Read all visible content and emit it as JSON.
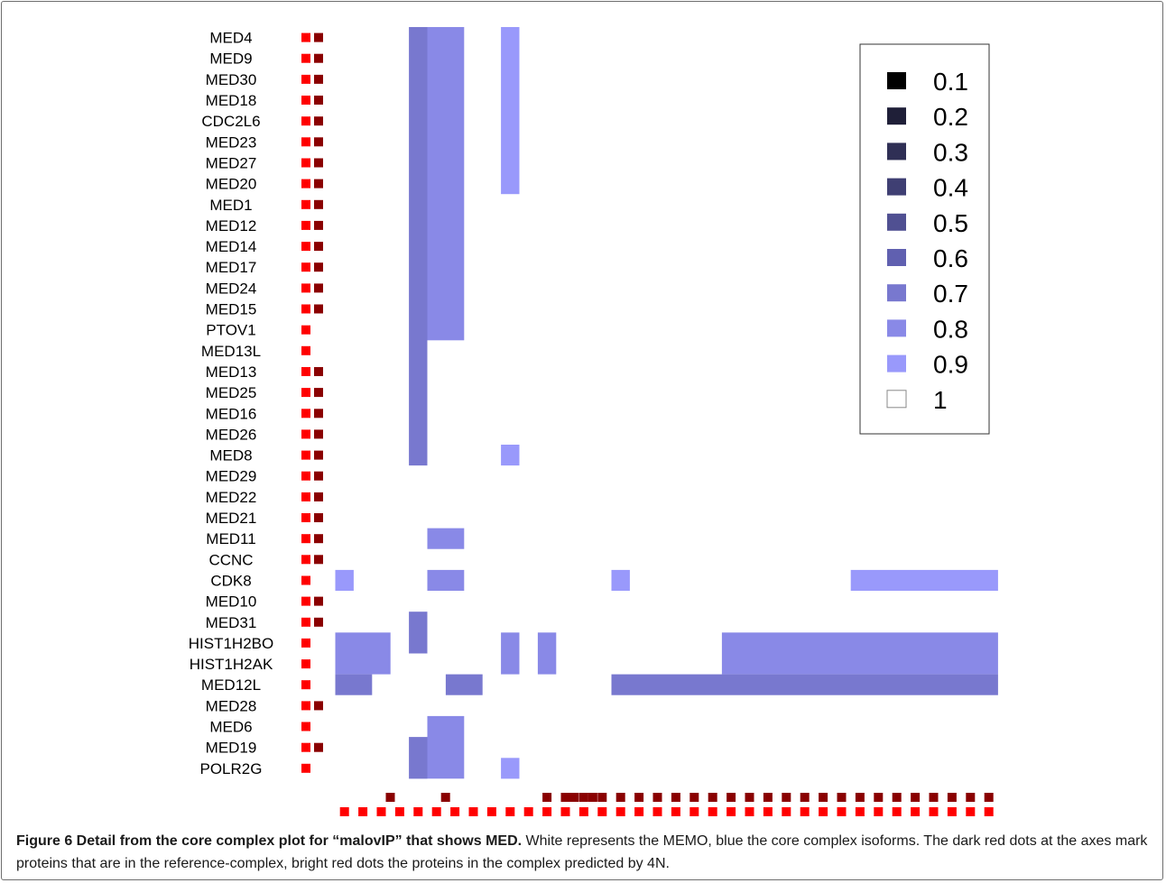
{
  "chart_data": {
    "type": "heatmap",
    "rows": [
      "MED4",
      "MED9",
      "MED30",
      "MED18",
      "CDC2L6",
      "MED23",
      "MED27",
      "MED20",
      "MED1",
      "MED12",
      "MED14",
      "MED17",
      "MED24",
      "MED15",
      "PTOV1",
      "MED13L",
      "MED13",
      "MED25",
      "MED16",
      "MED26",
      "MED8",
      "MED29",
      "MED22",
      "MED21",
      "MED11",
      "CCNC",
      "CDK8",
      "MED10",
      "MED31",
      "HIST1H2BO",
      "HIST1H2AK",
      "MED12L",
      "MED28",
      "MED6",
      "MED19",
      "POLR2G"
    ],
    "row_reference_dot": [
      true,
      true,
      true,
      true,
      true,
      true,
      true,
      true,
      true,
      true,
      true,
      true,
      true,
      true,
      false,
      false,
      true,
      true,
      true,
      true,
      true,
      true,
      true,
      true,
      true,
      true,
      false,
      true,
      true,
      false,
      false,
      false,
      true,
      false,
      true,
      false
    ],
    "row_predicted_dot": [
      true,
      true,
      true,
      true,
      true,
      true,
      true,
      true,
      true,
      true,
      true,
      true,
      true,
      true,
      true,
      true,
      true,
      true,
      true,
      true,
      true,
      true,
      true,
      true,
      true,
      true,
      true,
      true,
      true,
      true,
      true,
      true,
      true,
      true,
      true,
      true
    ],
    "column_count": 36,
    "col_reference_dot": [
      false,
      false,
      true,
      false,
      false,
      true,
      false,
      false,
      false,
      false,
      false,
      false,
      true,
      true,
      false,
      false,
      false,
      false,
      false,
      false,
      false,
      false,
      false,
      false,
      false,
      false,
      false,
      false,
      false,
      false,
      false,
      false,
      false,
      false,
      false,
      false
    ],
    "col_reference_dot_right": [
      true,
      true,
      true,
      true,
      true,
      true,
      true,
      true,
      true,
      false,
      false,
      true,
      true,
      true,
      true,
      true,
      true,
      true,
      true,
      true,
      true,
      true,
      true,
      true,
      true,
      true,
      true,
      true,
      true,
      true,
      true,
      true,
      true,
      true,
      true,
      true
    ],
    "col_predicted_dot": [
      true,
      true,
      true,
      true,
      true,
      true,
      true,
      true,
      true,
      true,
      true,
      true,
      true,
      true,
      true,
      true,
      true,
      true,
      true,
      true,
      true,
      true,
      true,
      true,
      true,
      true,
      true,
      true,
      true,
      true,
      true,
      true,
      true,
      true,
      true,
      true
    ],
    "cells": [
      {
        "r0": 0,
        "r1": 21,
        "c0": 4,
        "c1": 5,
        "value": 0.7
      },
      {
        "r0": 0,
        "r1": 15,
        "c0": 5,
        "c1": 7,
        "value": 0.8
      },
      {
        "r0": 0,
        "r1": 8,
        "c0": 9,
        "c1": 10,
        "value": 0.9
      },
      {
        "r0": 20,
        "r1": 21,
        "c0": 9,
        "c1": 10,
        "value": 0.9
      },
      {
        "r0": 24,
        "r1": 25,
        "c0": 5,
        "c1": 7,
        "value": 0.8
      },
      {
        "r0": 26,
        "r1": 27,
        "c0": 0,
        "c1": 1,
        "value": 0.9
      },
      {
        "r0": 26,
        "r1": 27,
        "c0": 5,
        "c1": 7,
        "value": 0.8
      },
      {
        "r0": 26,
        "r1": 27,
        "c0": 15,
        "c1": 16,
        "value": 0.9
      },
      {
        "r0": 26,
        "r1": 27,
        "c0": 28,
        "c1": 36,
        "value": 0.9
      },
      {
        "r0": 28,
        "r1": 30,
        "c0": 4,
        "c1": 5,
        "value": 0.7
      },
      {
        "r0": 29,
        "r1": 31,
        "c0": 0,
        "c1": 3,
        "value": 0.8
      },
      {
        "r0": 29,
        "r1": 31,
        "c0": 9,
        "c1": 10,
        "value": 0.8
      },
      {
        "r0": 29,
        "r1": 31,
        "c0": 11,
        "c1": 12,
        "value": 0.8
      },
      {
        "r0": 29,
        "r1": 31,
        "c0": 21,
        "c1": 36,
        "value": 0.8
      },
      {
        "r0": 31,
        "r1": 32,
        "c0": 0,
        "c1": 2,
        "value": 0.7
      },
      {
        "r0": 31,
        "r1": 32,
        "c0": 6,
        "c1": 8,
        "value": 0.7
      },
      {
        "r0": 31,
        "r1": 32,
        "c0": 15,
        "c1": 36,
        "value": 0.7
      },
      {
        "r0": 33,
        "r1": 36,
        "c0": 5,
        "c1": 7,
        "value": 0.8
      },
      {
        "r0": 34,
        "r1": 36,
        "c0": 4,
        "c1": 5,
        "value": 0.7
      },
      {
        "r0": 35,
        "r1": 36,
        "c0": 9,
        "c1": 10,
        "value": 0.9
      }
    ],
    "legend": {
      "placement": "top-right",
      "entries": [
        {
          "label": "0.1",
          "value": 0.1,
          "color": "#000000"
        },
        {
          "label": "0.2",
          "value": 0.2,
          "color": "#1f1f38"
        },
        {
          "label": "0.3",
          "value": 0.3,
          "color": "#2f2f55"
        },
        {
          "label": "0.4",
          "value": 0.4,
          "color": "#3f3f73"
        },
        {
          "label": "0.5",
          "value": 0.5,
          "color": "#505092"
        },
        {
          "label": "0.6",
          "value": 0.6,
          "color": "#6060b0"
        },
        {
          "label": "0.7",
          "value": 0.7,
          "color": "#7878cf"
        },
        {
          "label": "0.8",
          "value": 0.8,
          "color": "#8989e7"
        },
        {
          "label": "0.9",
          "value": 0.9,
          "color": "#9999fb"
        },
        {
          "label": "1",
          "value": 1,
          "color": "#ffffff"
        }
      ]
    },
    "colors": {
      "reference_dot": "#8a0000",
      "predicted_dot": "#ff0000"
    }
  },
  "caption": {
    "title": "Figure 6 Detail from the core complex plot for “malovIP” that shows MED.",
    "text": " White represents the MEMO, blue the core complex isoforms. The dark red dots at the axes mark proteins that are in the reference-complex, bright red dots the proteins in the complex predicted by 4N."
  }
}
